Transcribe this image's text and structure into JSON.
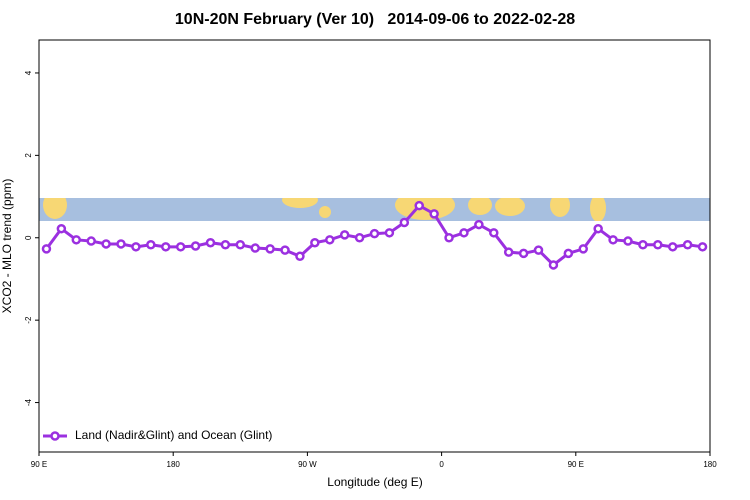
{
  "chart_data": {
    "type": "line",
    "title": "10N-20N February (Ver 10)   2014-09-06 to 2022-02-28",
    "x_label": "Longitude (deg E)",
    "y_label": "XCO2 - MLO trend (ppm)",
    "xlim": [
      90,
      540
    ],
    "xticks": [
      {
        "value": 90,
        "label": "90 E"
      },
      {
        "value": 180,
        "label": "180"
      },
      {
        "value": 270,
        "label": "90 W"
      },
      {
        "value": 360,
        "label": "0"
      },
      {
        "value": 450,
        "label": "90 E"
      },
      {
        "value": 540,
        "label": "180"
      }
    ],
    "ylim": [
      -5.2,
      4.8
    ],
    "yticks": [
      -4,
      -2,
      0,
      2,
      4
    ],
    "legend": "bottom-left",
    "x": [
      95,
      105,
      115,
      125,
      135,
      145,
      155,
      165,
      175,
      185,
      195,
      205,
      215,
      225,
      235,
      245,
      255,
      265,
      275,
      285,
      295,
      305,
      315,
      325,
      335,
      345,
      355,
      365,
      375,
      385,
      395,
      405,
      415,
      425,
      435,
      445,
      455,
      465,
      475,
      485,
      495,
      505,
      515,
      525,
      535
    ],
    "series": [
      {
        "name": "Land (Nadir&Glint) and Ocean (Glint)",
        "color": "#9b30e0",
        "values": [
          -0.27,
          0.22,
          -0.05,
          -0.08,
          -0.15,
          -0.15,
          -0.22,
          -0.17,
          -0.22,
          -0.22,
          -0.2,
          -0.12,
          -0.17,
          -0.17,
          -0.25,
          -0.27,
          -0.3,
          -0.45,
          -0.12,
          -0.05,
          0.07,
          0,
          0.1,
          0.12,
          0.37,
          0.78,
          0.58,
          0,
          0.12,
          0.32,
          0.12,
          -0.35,
          -0.38,
          -0.3,
          -0.66,
          -0.38,
          -0.27,
          0.22,
          -0.05,
          -0.08,
          -0.17,
          -0.17,
          -0.22,
          -0.17,
          -0.22
        ]
      }
    ]
  }
}
